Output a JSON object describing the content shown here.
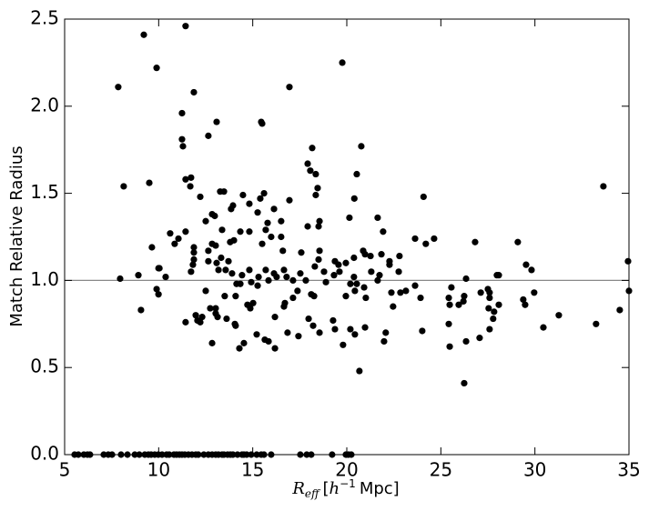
{
  "chart_data": {
    "type": "scatter",
    "xlabel": {
      "symbol": "R",
      "subscript": "eff",
      "open": "[",
      "base": "h",
      "exponent": "−1",
      "unit": "Mpc]"
    },
    "ylabel": "Match Relative Radius",
    "xlim": [
      5,
      35
    ],
    "ylim": [
      0,
      2.5
    ],
    "xticks": [
      5,
      10,
      15,
      20,
      25,
      30,
      35
    ],
    "yticks": [
      {
        "value": 0,
        "label": "0.0"
      },
      {
        "value": 0.5,
        "label": "0.5"
      },
      {
        "value": 1,
        "label": "1.0"
      },
      {
        "value": 1.5,
        "label": "1.5"
      },
      {
        "value": 2,
        "label": "2.0"
      },
      {
        "value": 2.5,
        "label": "2.5"
      }
    ],
    "hline": 1.0,
    "hline_color": "#888888",
    "color": "#000000",
    "x": [
      7.85,
      9.21,
      9.89,
      11.43,
      11.87,
      11.24,
      11.24,
      11.29,
      13.08,
      12.64,
      16.95,
      19.76,
      20.77,
      15.45,
      15.5,
      18.16,
      17.92,
      18.06,
      18.35,
      20.53,
      8.14,
      9.5,
      11.43,
      11.72,
      11.68,
      12.21,
      13.27,
      13.47,
      14.48,
      14.82,
      15.4,
      15.6,
      16.51,
      16.95,
      18.35,
      18.45,
      20.4,
      24.08,
      33.64,
      21.64,
      20.14,
      18.55,
      18.5,
      17.92,
      16.13,
      15.26,
      15.79,
      13.85,
      13.95,
      12.98,
      12.84,
      12.5,
      13.37,
      14.82,
      10.61,
      11.05,
      10.85,
      11.43,
      9.64,
      14.34,
      14.0,
      12.84,
      13.03,
      13.8,
      15.69,
      15.5,
      15.98,
      16.6,
      16.51,
      17.58,
      18.55,
      18.5,
      18.3,
      19.37,
      19.56,
      19.95,
      20.38,
      20.87,
      20.97,
      21.3,
      21.26,
      21.93,
      21.84,
      22.27,
      22.27,
      22.8,
      22.76,
      23.63,
      24.2,
      24.64,
      26.82,
      29.09,
      29.53,
      29.82,
      28.08,
      27.98,
      26.34,
      34.95,
      7.95,
      8.92,
      9.99,
      10.04,
      10.37,
      9.89,
      9.99,
      9.06,
      11.72,
      11.82,
      11.87,
      11.87,
      11.87,
      12.64,
      12.64,
      12.5,
      13.08,
      13.18,
      13.32,
      13.56,
      13.71,
      13.9,
      14.14,
      14.09,
      14.43,
      14.34,
      14.82,
      14.92,
      15.31,
      15.26,
      15.69,
      15.84,
      16.13,
      16.27,
      16.66,
      16.8,
      17.14,
      17.14,
      17.38,
      17.53,
      17.82,
      18.11,
      18.26,
      18.79,
      18.89,
      19.32,
      19.61,
      19.95,
      20.19,
      20.38,
      20.43,
      20.53,
      20.92,
      21.01,
      21.64,
      21.74,
      22.46,
      22.37,
      22.85,
      23.14,
      23.63,
      23.92,
      25.42,
      25.47,
      25.56,
      25.95,
      26.2,
      26.24,
      27.12,
      27.5,
      27.59,
      27.59,
      27.54,
      27.83,
      28.08,
      29.38,
      29.48,
      29.96,
      11.43,
      12.06,
      12.21,
      11.97,
      12.31,
      12.74,
      13.03,
      13.13,
      13.03,
      13.51,
      13.61,
      14.05,
      14.09,
      14.29,
      14.53,
      14.72,
      14.87,
      15.02,
      15.21,
      15.64,
      15.84,
      16.18,
      16.18,
      16.71,
      16.66,
      16.85,
      17.43,
      17.97,
      18.21,
      18.55,
      19.27,
      19.37,
      19.8,
      20.19,
      20.43,
      20.67,
      20.97,
      22.07,
      21.98,
      24.01,
      12.84,
      25.42,
      25.47,
      26.34,
      26.24,
      27.06,
      27.59,
      27.78,
      30.45,
      31.27,
      33.25,
      34.51,
      35.0,
      5.53,
      5.73,
      6.02,
      6.21,
      6.35,
      7.08,
      7.32,
      7.52,
      8.0,
      8.34,
      8.73,
      8.97,
      9.26,
      9.45,
      9.6,
      9.79,
      9.98,
      10.18,
      10.42,
      10.56,
      10.81,
      10.95,
      11.1,
      11.24,
      11.39,
      11.58,
      11.77,
      11.97,
      12.11,
      12.4,
      12.64,
      12.84,
      13.03,
      13.18,
      13.37,
      13.47,
      13.66,
      13.81,
      13.95,
      14.19,
      14.43,
      14.53,
      14.68,
      14.92,
      15.21,
      15.45,
      15.6,
      15.98,
      17.53,
      17.87,
      18.11,
      19.22,
      19.95,
      20.09,
      20.24
    ],
    "values": [
      2.11,
      2.41,
      2.22,
      2.46,
      2.08,
      1.96,
      1.81,
      1.77,
      1.91,
      1.83,
      2.11,
      2.25,
      1.77,
      1.91,
      1.9,
      1.76,
      1.67,
      1.63,
      1.61,
      1.61,
      1.54,
      1.56,
      1.58,
      1.59,
      1.54,
      1.48,
      1.51,
      1.51,
      1.49,
      1.44,
      1.47,
      1.5,
      1.34,
      1.46,
      1.49,
      1.53,
      1.47,
      1.48,
      1.54,
      1.36,
      1.36,
      1.34,
      1.31,
      1.31,
      1.41,
      1.39,
      1.33,
      1.41,
      1.43,
      1.37,
      1.38,
      1.34,
      1.29,
      1.28,
      1.27,
      1.24,
      1.21,
      1.28,
      1.19,
      1.28,
      1.23,
      1.21,
      1.2,
      1.22,
      1.29,
      1.21,
      1.25,
      1.17,
      1.25,
      1.16,
      1.17,
      1.12,
      1.08,
      1.11,
      1.09,
      1.1,
      1.13,
      1.17,
      1.15,
      1.05,
      1.14,
      1.28,
      1.15,
      1.11,
      1.09,
      1.14,
      1.05,
      1.24,
      1.21,
      1.24,
      1.22,
      1.22,
      1.09,
      1.06,
      1.03,
      1.03,
      1.01,
      1.11,
      1.01,
      1.03,
      1.07,
      1.07,
      1.02,
      0.95,
      0.92,
      0.83,
      1.05,
      1.09,
      1.16,
      1.12,
      1.19,
      1.11,
      1.17,
      0.94,
      1.1,
      1.06,
      1.13,
      1.06,
      1.11,
      1.04,
      0.98,
      0.91,
      1.03,
      0.98,
      1.06,
      0.99,
      1.02,
      0.97,
      1.06,
      1.0,
      1.04,
      1.02,
      1.06,
      1.02,
      1.0,
      0.9,
      0.94,
      1.04,
      1.0,
      0.92,
      0.91,
      1.05,
      0.99,
      1.03,
      1.05,
      0.91,
      0.98,
      1.02,
      0.94,
      0.98,
      0.96,
      0.9,
      1.0,
      1.03,
      0.85,
      0.93,
      0.93,
      0.94,
      0.97,
      0.9,
      0.9,
      0.86,
      0.96,
      0.86,
      0.88,
      0.91,
      0.93,
      0.95,
      0.93,
      0.9,
      0.84,
      0.82,
      0.86,
      0.89,
      0.86,
      0.93,
      0.76,
      0.77,
      0.76,
      0.8,
      0.79,
      0.84,
      0.81,
      0.79,
      0.84,
      0.91,
      0.78,
      0.75,
      0.74,
      0.61,
      0.64,
      0.86,
      0.84,
      0.87,
      0.69,
      0.66,
      0.65,
      0.61,
      0.79,
      0.87,
      0.85,
      0.7,
      0.68,
      0.78,
      0.74,
      0.7,
      0.77,
      0.72,
      0.63,
      0.72,
      0.69,
      0.48,
      0.73,
      0.7,
      0.65,
      0.71,
      0.64,
      0.75,
      0.62,
      0.65,
      0.41,
      0.67,
      0.72,
      0.78,
      0.73,
      0.8,
      0.75,
      0.83,
      0.94,
      0,
      0,
      0,
      0,
      0,
      0,
      0,
      0,
      0,
      0,
      0,
      0,
      0,
      0,
      0,
      0,
      0,
      0,
      0,
      0,
      0,
      0,
      0,
      0,
      0,
      0,
      0,
      0,
      0,
      0,
      0,
      0,
      0,
      0,
      0,
      0,
      0,
      0,
      0,
      0,
      0,
      0,
      0,
      0,
      0,
      0,
      0,
      0,
      0,
      0,
      0,
      0,
      0,
      0,
      0
    ]
  }
}
